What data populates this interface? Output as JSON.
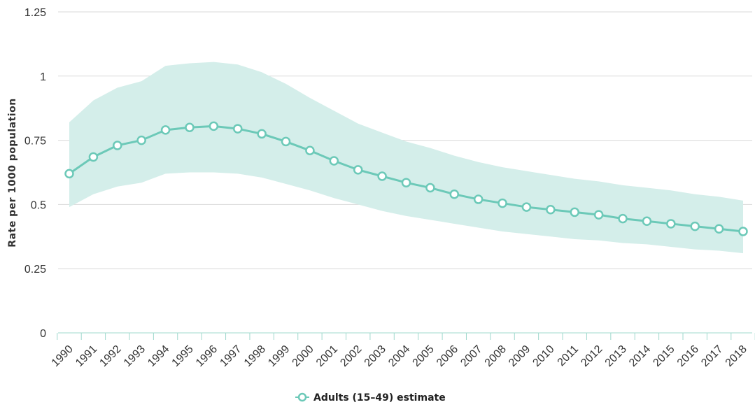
{
  "chart_data": {
    "type": "line",
    "ylabel": "Rate per 1000 population",
    "ylim": [
      0,
      1.25
    ],
    "yticks": [
      {
        "value": 0,
        "label": "0"
      },
      {
        "value": 0.25,
        "label": "0.25"
      },
      {
        "value": 0.5,
        "label": "0.5"
      },
      {
        "value": 0.75,
        "label": "0.75"
      },
      {
        "value": 1,
        "label": "1"
      },
      {
        "value": 1.25,
        "label": "1.25"
      }
    ],
    "x": [
      "1990",
      "1991",
      "1992",
      "1993",
      "1994",
      "1995",
      "1996",
      "1997",
      "1998",
      "1999",
      "2000",
      "2001",
      "2002",
      "2003",
      "2004",
      "2005",
      "2006",
      "2007",
      "2008",
      "2009",
      "2010",
      "2011",
      "2012",
      "2013",
      "2014",
      "2015",
      "2016",
      "2017",
      "2018"
    ],
    "series": [
      {
        "name": "Adults (15-49) estimate",
        "color": "#6cc9b8",
        "band_color": "#d4eeea",
        "values": [
          0.62,
          0.685,
          0.73,
          0.75,
          0.79,
          0.8,
          0.805,
          0.795,
          0.775,
          0.745,
          0.71,
          0.67,
          0.635,
          0.61,
          0.585,
          0.565,
          0.54,
          0.52,
          0.505,
          0.49,
          0.48,
          0.47,
          0.46,
          0.445,
          0.435,
          0.425,
          0.415,
          0.405,
          0.395
        ],
        "lower": [
          0.49,
          0.54,
          0.57,
          0.585,
          0.62,
          0.625,
          0.625,
          0.62,
          0.605,
          0.58,
          0.555,
          0.525,
          0.5,
          0.475,
          0.455,
          0.44,
          0.425,
          0.41,
          0.395,
          0.385,
          0.375,
          0.365,
          0.36,
          0.35,
          0.345,
          0.335,
          0.325,
          0.32,
          0.31
        ],
        "upper": [
          0.82,
          0.905,
          0.955,
          0.98,
          1.04,
          1.05,
          1.055,
          1.045,
          1.015,
          0.97,
          0.915,
          0.865,
          0.815,
          0.78,
          0.745,
          0.72,
          0.69,
          0.665,
          0.645,
          0.63,
          0.615,
          0.6,
          0.59,
          0.575,
          0.565,
          0.555,
          0.54,
          0.53,
          0.515
        ]
      }
    ],
    "legend": {
      "label": "Adults (15–49) estimate",
      "position": "bottom-center"
    },
    "grid": true
  }
}
